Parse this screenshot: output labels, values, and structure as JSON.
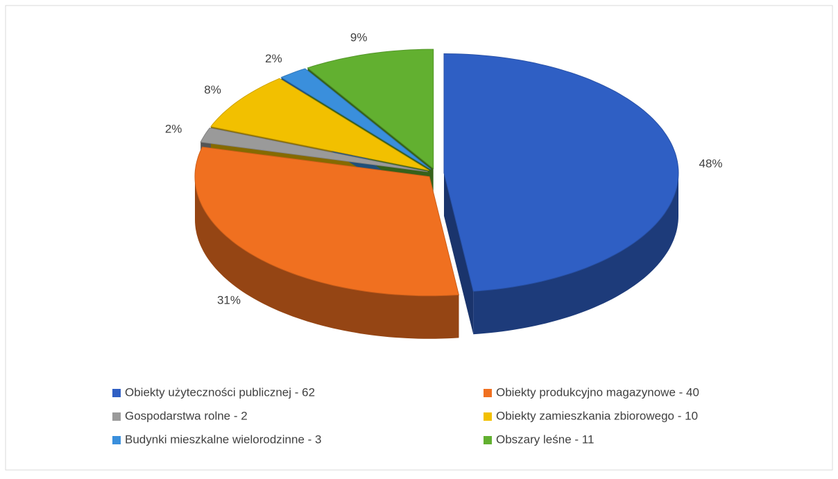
{
  "chart_data": {
    "type": "pie3d",
    "categories": [
      "Obiekty użyteczności publicznej - 62",
      "Obiekty produkcyjno magazynowe - 40",
      "Gospodarstwa rolne - 2",
      "Obiekty zamieszkania zbiorowego - 10",
      "Budynki mieszkalne wielorodzinne - 3",
      "Obszary leśne - 11"
    ],
    "values": [
      48,
      31,
      2,
      8,
      2,
      9
    ],
    "value_labels": [
      "48%",
      "31%",
      "2%",
      "8%",
      "2%",
      "9%"
    ],
    "colors": [
      "#2f5fc4",
      "#f07020",
      "#9a9a9a",
      "#f2c000",
      "#3a8fdc",
      "#62b030"
    ],
    "legend": "bottom"
  }
}
